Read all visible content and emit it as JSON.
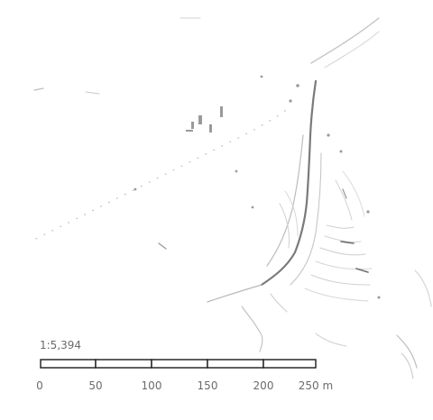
{
  "map": {
    "scale_ratio": "1:5,394",
    "scale_bar": {
      "unit": "m",
      "ticks": [
        "0",
        "50",
        "100",
        "150",
        "200",
        "250 m"
      ]
    },
    "colors": {
      "background": "#ffffff",
      "feature_light": "#c9c9c9",
      "feature_mid": "#a0a0a0",
      "feature_dark": "#5a5a5a",
      "scale_fill_a": "#ffffff",
      "scale_fill_b": "#ffffff",
      "scale_stroke": "#1a1a1a"
    }
  }
}
